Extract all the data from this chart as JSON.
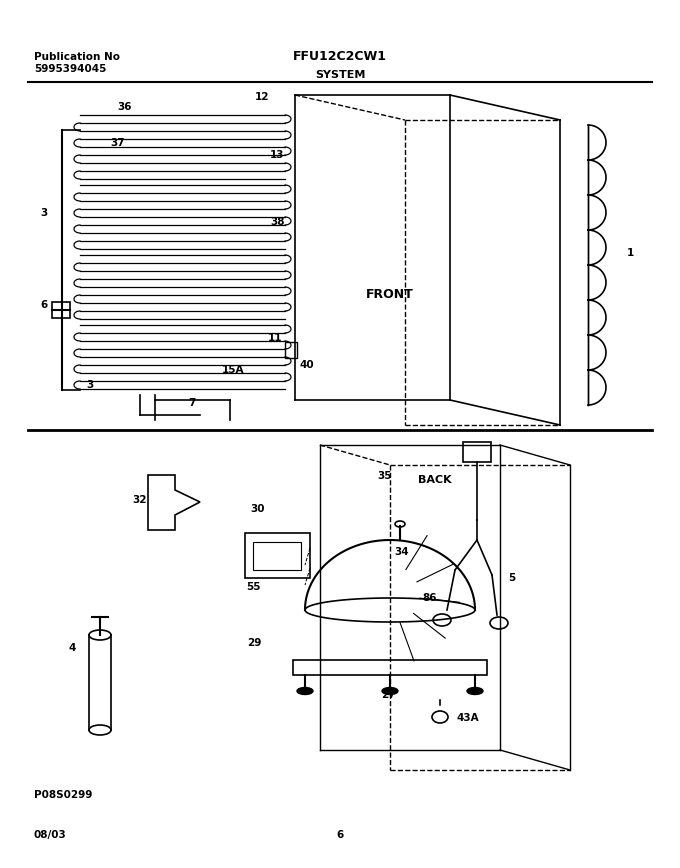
{
  "title_center": "FFU12C2CW1",
  "title_left_line1": "Publication No",
  "title_left_line2": "5995394045",
  "section_label": "SYSTEM",
  "footer_left": "08/03",
  "footer_center": "6",
  "footer_code": "P08S0299",
  "bg_color": "#ffffff",
  "line_color": "#000000",
  "text_color": "#000000"
}
